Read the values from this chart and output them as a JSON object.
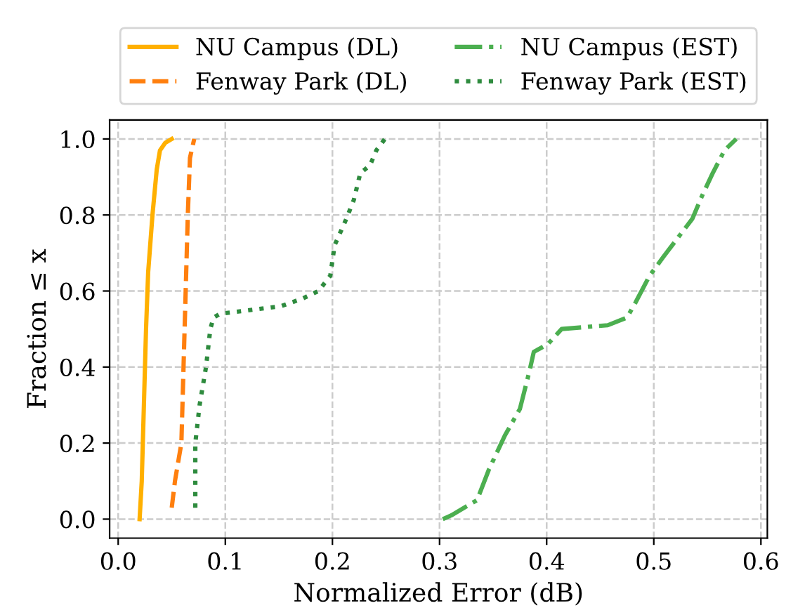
{
  "chart_data": {
    "type": "line",
    "xlabel": "Normalized Error (dB)",
    "ylabel": "Fraction ≤ x",
    "xlim": [
      -0.008,
      0.606
    ],
    "ylim": [
      -0.05,
      1.05
    ],
    "xticks": [
      {
        "value": 0,
        "label": "0.0"
      },
      {
        "value": 0.1,
        "label": "0.1"
      },
      {
        "value": 0.2,
        "label": "0.2"
      },
      {
        "value": 0.3,
        "label": "0.3"
      },
      {
        "value": 0.4,
        "label": "0.4"
      },
      {
        "value": 0.5,
        "label": "0.5"
      },
      {
        "value": 0.6,
        "label": "0.6"
      }
    ],
    "yticks": [
      {
        "value": 0,
        "label": "0.0"
      },
      {
        "value": 0.2,
        "label": "0.2"
      },
      {
        "value": 0.4,
        "label": "0.4"
      },
      {
        "value": 0.6,
        "label": "0.6"
      },
      {
        "value": 0.8,
        "label": "0.8"
      },
      {
        "value": 1.0,
        "label": "1.0"
      }
    ],
    "grid": true,
    "legend": "top",
    "marker": "none",
    "series": [
      {
        "name": "NU Campus (DL)",
        "color": "#ffb000",
        "line_style": "solid",
        "x": [
          0.02,
          0.022,
          0.024,
          0.026,
          0.028,
          0.032,
          0.036,
          0.039,
          0.044,
          0.05
        ],
        "values": [
          0,
          0.1,
          0.3,
          0.5,
          0.65,
          0.8,
          0.92,
          0.97,
          0.99,
          1.0
        ]
      },
      {
        "name": "Fenway Park (DL)",
        "color": "#ff7f0e",
        "line_style": "dashed",
        "x": [
          0.05,
          0.053,
          0.059,
          0.062,
          0.065,
          0.067,
          0.071
        ],
        "values": [
          0.03,
          0.1,
          0.2,
          0.5,
          0.8,
          0.95,
          1.0
        ]
      },
      {
        "name": "NU Campus (EST)",
        "color": "#4caf50",
        "line_style": "dashdot",
        "x": [
          0.303,
          0.311,
          0.335,
          0.346,
          0.361,
          0.375,
          0.384,
          0.388,
          0.401,
          0.414,
          0.457,
          0.475,
          0.483,
          0.496,
          0.509,
          0.536,
          0.545,
          0.555,
          0.566,
          0.577
        ],
        "values": [
          0.0,
          0.01,
          0.05,
          0.13,
          0.22,
          0.29,
          0.39,
          0.44,
          0.46,
          0.5,
          0.51,
          0.53,
          0.57,
          0.64,
          0.69,
          0.79,
          0.85,
          0.91,
          0.97,
          1.0
        ]
      },
      {
        "name": "Fenway Park (EST)",
        "color": "#2e8b3e",
        "line_style": "dotted",
        "x": [
          0.072,
          0.072,
          0.076,
          0.082,
          0.086,
          0.089,
          0.095,
          0.152,
          0.172,
          0.187,
          0.198,
          0.202,
          0.213,
          0.22,
          0.226,
          0.235,
          0.241,
          0.249
        ],
        "values": [
          0.03,
          0.2,
          0.3,
          0.4,
          0.5,
          0.53,
          0.54,
          0.56,
          0.58,
          0.6,
          0.64,
          0.72,
          0.79,
          0.84,
          0.91,
          0.93,
          0.97,
          1.0
        ]
      }
    ]
  }
}
